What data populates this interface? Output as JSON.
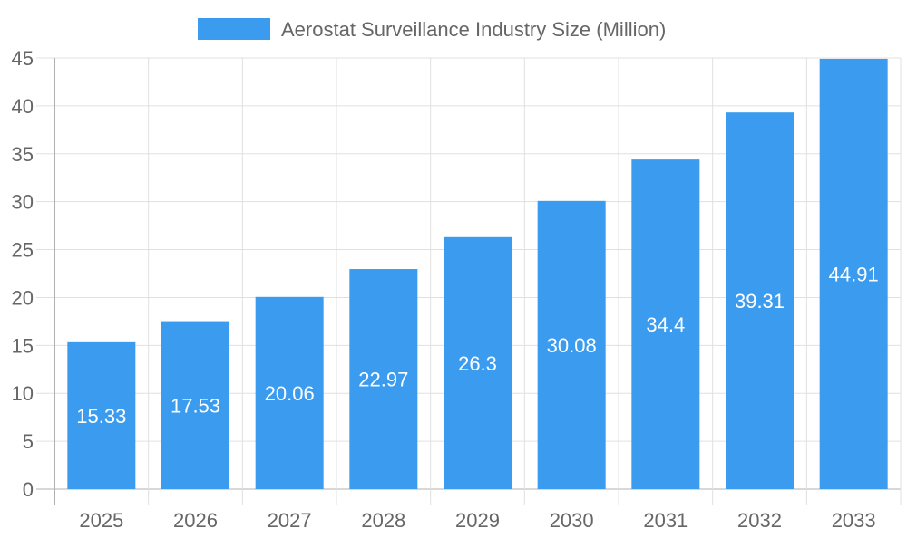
{
  "chart_data": {
    "type": "bar",
    "categories": [
      "2025",
      "2026",
      "2027",
      "2028",
      "2029",
      "2030",
      "2031",
      "2032",
      "2033"
    ],
    "series": [
      {
        "name": "Aerostat Surveillance Industry Size (Million)",
        "values": [
          15.33,
          17.53,
          20.06,
          22.97,
          26.3,
          30.08,
          34.4,
          39.31,
          44.91
        ]
      }
    ],
    "ylim": [
      0,
      45
    ],
    "yticks": [
      0,
      5,
      10,
      15,
      20,
      25,
      30,
      35,
      40,
      45
    ],
    "grid": true,
    "legend_position": "top",
    "data_labels": true,
    "colors": {
      "bar": "#3a9bef",
      "grid": "#e0e0e0",
      "axis": "#b0b0b0",
      "text": "#666666",
      "label": "#ffffff"
    }
  }
}
